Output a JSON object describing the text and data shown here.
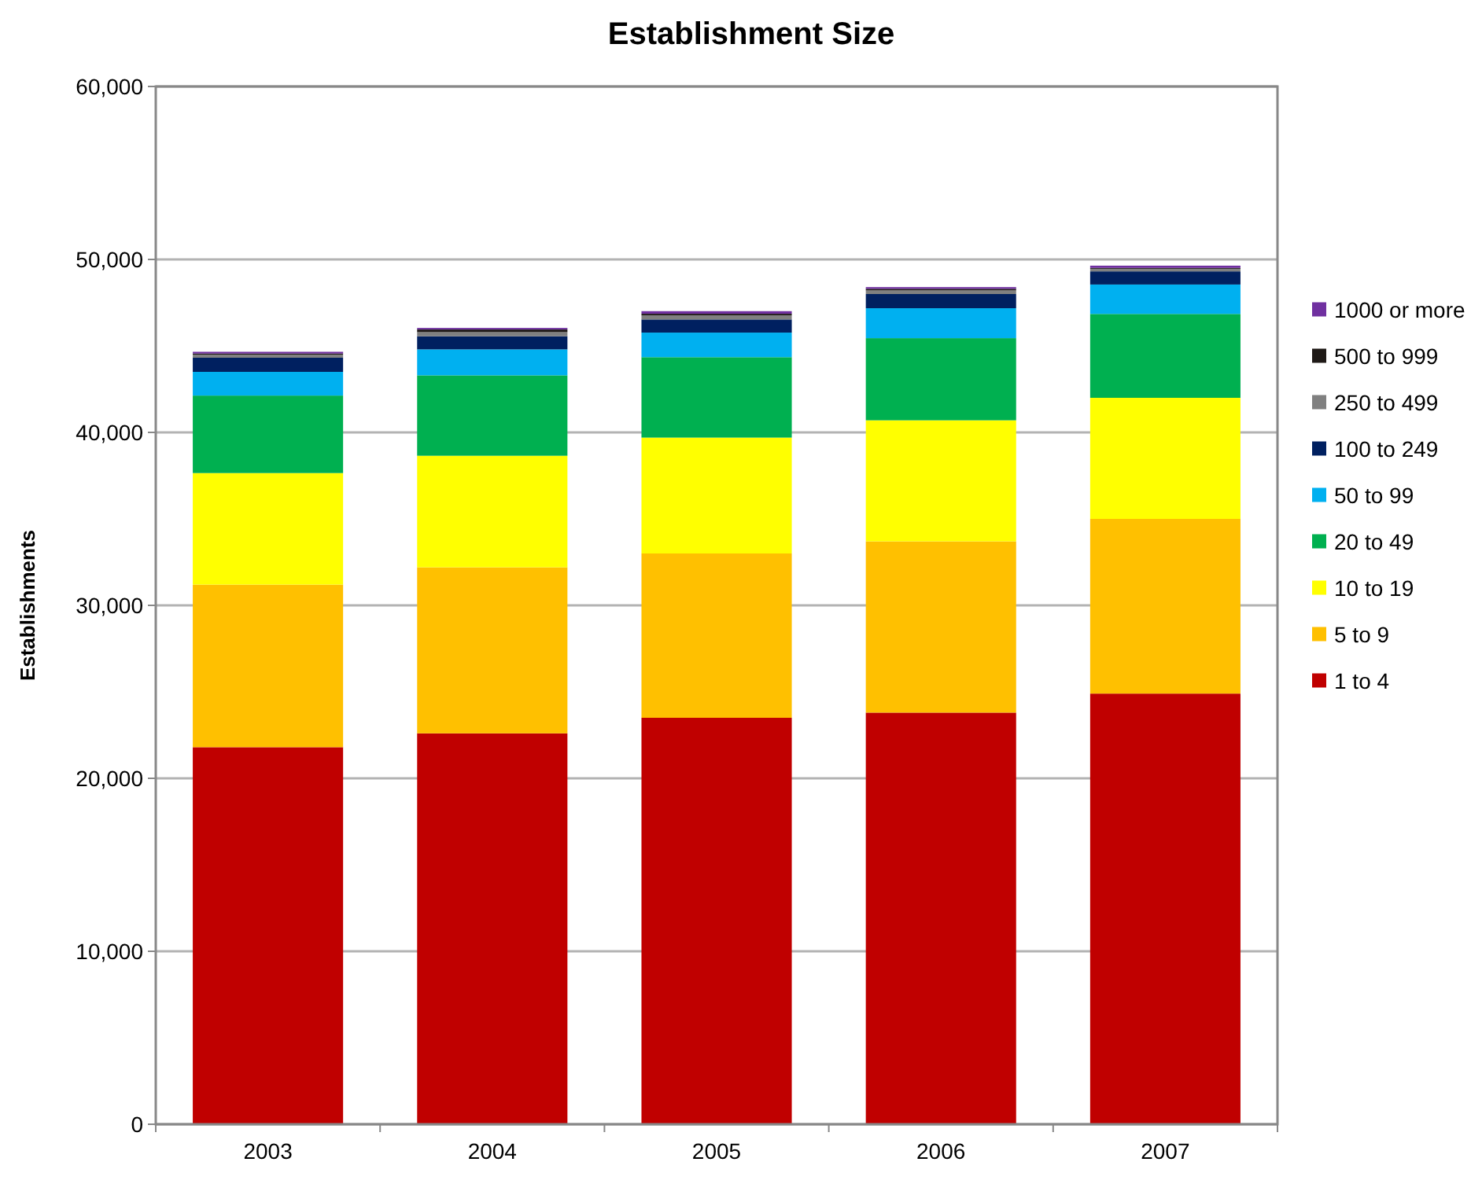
{
  "chart_data": {
    "type": "bar",
    "title": "Establishment Size",
    "ylabel": "Establishments",
    "categories": [
      "2003",
      "2004",
      "2005",
      "2006",
      "2007"
    ],
    "stacked": true,
    "ylim": [
      0,
      60000
    ],
    "yticks": [
      {
        "value": 0,
        "label": "0"
      },
      {
        "value": 10000,
        "label": "10,000"
      },
      {
        "value": 20000,
        "label": "20,000"
      },
      {
        "value": 30000,
        "label": "30,000"
      },
      {
        "value": 40000,
        "label": "40,000"
      },
      {
        "value": 50000,
        "label": "50,000"
      },
      {
        "value": 60000,
        "label": "60,000"
      }
    ],
    "grid": "y",
    "legend": "right",
    "series": [
      {
        "name": "1 to 4",
        "color": "#c00000",
        "values": [
          21800,
          22600,
          23500,
          23800,
          24900
        ]
      },
      {
        "name": "5 to 9",
        "color": "#ffc000",
        "values": [
          9400,
          9600,
          9500,
          9900,
          10100
        ]
      },
      {
        "name": "10 to 19",
        "color": "#ffff00",
        "values": [
          6450,
          6450,
          6700,
          7000,
          7000
        ]
      },
      {
        "name": "20 to 49",
        "color": "#00b050",
        "values": [
          4480,
          4650,
          4650,
          4750,
          4850
        ]
      },
      {
        "name": "50 to 99",
        "color": "#00b0f0",
        "values": [
          1370,
          1500,
          1420,
          1730,
          1700
        ]
      },
      {
        "name": "100 to 249",
        "color": "#002060",
        "values": [
          820,
          760,
          760,
          820,
          760
        ]
      },
      {
        "name": "250 to 499",
        "color": "#808080",
        "values": [
          180,
          240,
          240,
          210,
          150
        ]
      },
      {
        "name": "500 to 999",
        "color": "#1f1a17",
        "values": [
          60,
          150,
          90,
          90,
          50
        ]
      },
      {
        "name": "1000 or more",
        "color": "#7030a0",
        "values": [
          100,
          90,
          150,
          100,
          130
        ]
      }
    ]
  }
}
